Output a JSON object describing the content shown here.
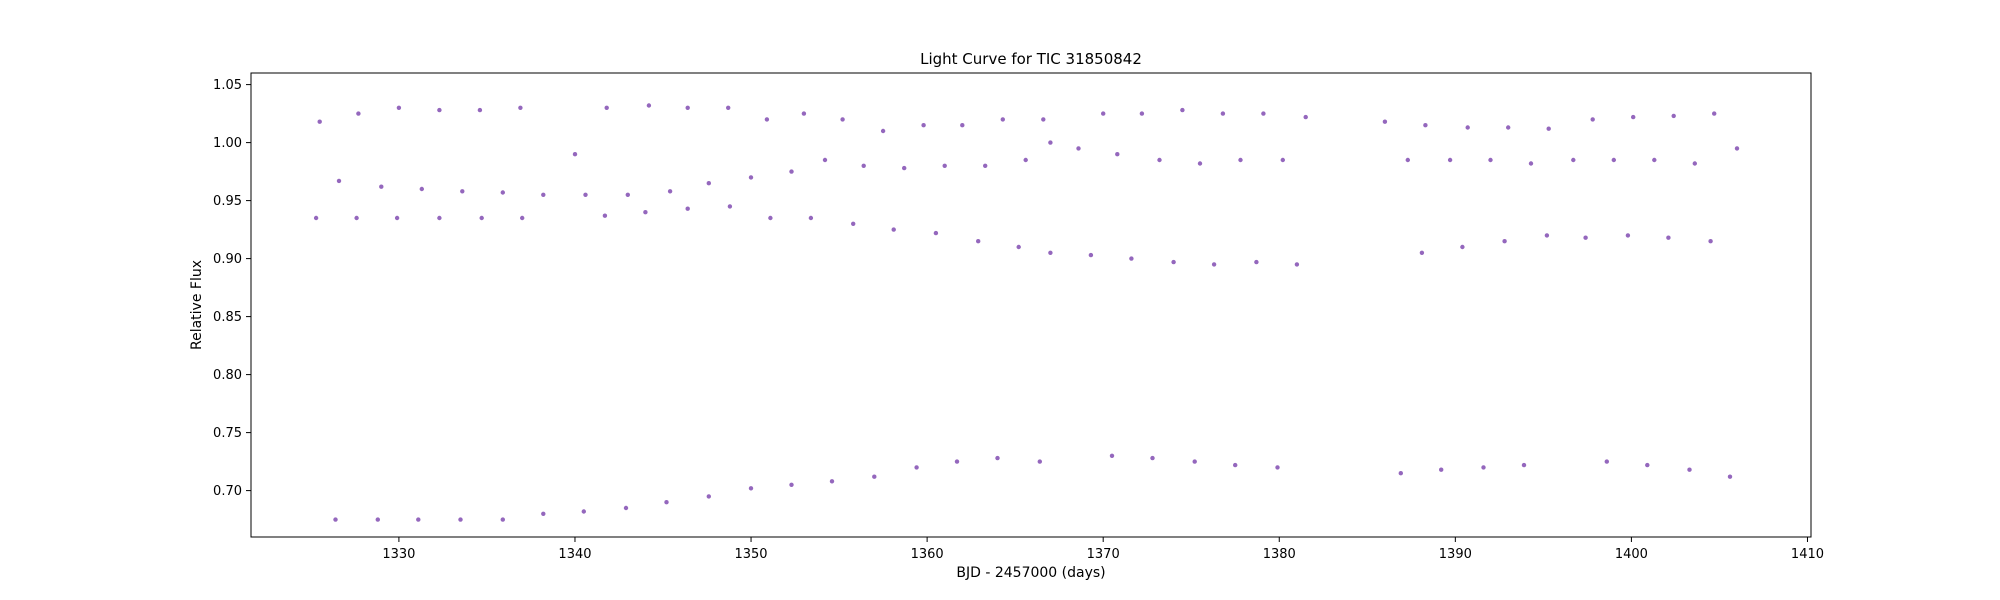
{
  "chart_data": {
    "type": "scatter",
    "title": "Light Curve for TIC 31850842",
    "xlabel": "BJD - 2457000 (days)",
    "ylabel": "Relative Flux",
    "xlim": [
      1321.6,
      1410.2
    ],
    "ylim": [
      0.66,
      1.06
    ],
    "x_ticks": [
      1330,
      1340,
      1350,
      1360,
      1370,
      1380,
      1390,
      1400,
      1410
    ],
    "y_ticks": [
      "0.70",
      "0.75",
      "0.80",
      "0.85",
      "0.90",
      "0.95",
      "1.00",
      "1.05"
    ],
    "grid": false,
    "marker_color": "#9467bd",
    "segments": [
      [
        1325.3,
        1338.6
      ],
      [
        1339.6,
        1353.2
      ],
      [
        1354.1,
        1367.1
      ],
      [
        1368.6,
        1381.6
      ],
      [
        1386.0,
        1395.3
      ],
      [
        1396.7,
        1406.3
      ]
    ],
    "series": [
      {
        "name": "",
        "kind": "primary_eclipse_minima",
        "x": [
          1326.4,
          1328.8,
          1331.1,
          1333.5,
          1335.9,
          1338.2,
          1340.5,
          1342.9,
          1345.2,
          1347.6,
          1350.0,
          1352.3,
          1354.6,
          1357.0,
          1359.4,
          1361.7,
          1364.0,
          1366.4,
          1370.5,
          1372.8,
          1375.2,
          1377.5,
          1379.9,
          1386.9,
          1389.2,
          1391.6,
          1393.9,
          1398.6,
          1400.9,
          1403.3,
          1405.6
        ],
        "y": [
          0.675,
          0.675,
          0.675,
          0.675,
          0.675,
          0.68,
          0.682,
          0.685,
          0.69,
          0.695,
          0.702,
          0.705,
          0.708,
          0.712,
          0.72,
          0.725,
          0.728,
          0.725,
          0.73,
          0.728,
          0.725,
          0.722,
          0.72,
          0.715,
          0.718,
          0.72,
          0.722,
          0.725,
          0.722,
          0.718,
          0.712
        ]
      },
      {
        "name": "",
        "kind": "secondary_eclipse_minima",
        "x": [
          1325.3,
          1327.6,
          1329.9,
          1332.3,
          1334.7,
          1337.0,
          1341.7,
          1344.0,
          1346.4,
          1348.8,
          1351.1,
          1353.4,
          1355.8,
          1358.1,
          1360.5,
          1362.9,
          1365.2,
          1367.0,
          1369.3,
          1371.6,
          1374.0,
          1376.3,
          1378.7,
          1381.0,
          1388.1,
          1390.4,
          1392.8,
          1395.2,
          1397.4,
          1399.8,
          1402.1,
          1404.5
        ],
        "y": [
          0.935,
          0.935,
          0.935,
          0.935,
          0.935,
          0.935,
          0.937,
          0.94,
          0.943,
          0.945,
          0.935,
          0.935,
          0.93,
          0.925,
          0.922,
          0.915,
          0.91,
          0.905,
          0.903,
          0.9,
          0.897,
          0.895,
          0.897,
          0.895,
          0.905,
          0.91,
          0.915,
          0.92,
          0.918,
          0.92,
          0.918,
          0.915
        ]
      },
      {
        "name": "",
        "kind": "out_of_eclipse_spot_modulation",
        "x": [
          1325.5,
          1326.6,
          1327.7,
          1329.0,
          1330.0,
          1331.3,
          1332.3,
          1333.6,
          1334.6,
          1335.9,
          1336.9,
          1338.2,
          1340.0,
          1340.6,
          1341.8,
          1343.0,
          1344.2,
          1345.4,
          1346.4,
          1347.6,
          1348.7,
          1350.0,
          1350.9,
          1352.3,
          1353.0,
          1354.2,
          1355.2,
          1356.4,
          1357.5,
          1358.7,
          1359.8,
          1361.0,
          1362.0,
          1363.3,
          1364.3,
          1365.6,
          1366.6,
          1367.0,
          1368.6,
          1370.0,
          1370.8,
          1372.2,
          1373.2,
          1374.5,
          1375.5,
          1376.8,
          1377.8,
          1379.1,
          1380.2,
          1381.5,
          1386.0,
          1387.3,
          1388.3,
          1389.7,
          1390.7,
          1392.0,
          1393.0,
          1394.3,
          1395.3,
          1396.7,
          1397.8,
          1399.0,
          1400.1,
          1401.3,
          1402.4,
          1403.6,
          1404.7,
          1406.0
        ],
        "y": [
          1.018,
          0.967,
          1.025,
          0.962,
          1.03,
          0.96,
          1.028,
          0.958,
          1.028,
          0.957,
          1.03,
          0.955,
          0.99,
          0.955,
          1.03,
          0.955,
          1.032,
          0.958,
          1.03,
          0.965,
          1.03,
          0.97,
          1.02,
          0.975,
          1.025,
          0.985,
          1.02,
          0.98,
          1.01,
          0.978,
          1.015,
          0.98,
          1.015,
          0.98,
          1.02,
          0.985,
          1.02,
          1.0,
          0.995,
          1.025,
          0.99,
          1.025,
          0.985,
          1.028,
          0.982,
          1.025,
          0.985,
          1.025,
          0.985,
          1.022,
          1.018,
          0.985,
          1.015,
          0.985,
          1.013,
          0.985,
          1.013,
          0.982,
          1.012,
          0.985,
          1.02,
          0.985,
          1.022,
          0.985,
          1.023,
          0.982,
          1.025,
          0.995
        ]
      }
    ]
  }
}
